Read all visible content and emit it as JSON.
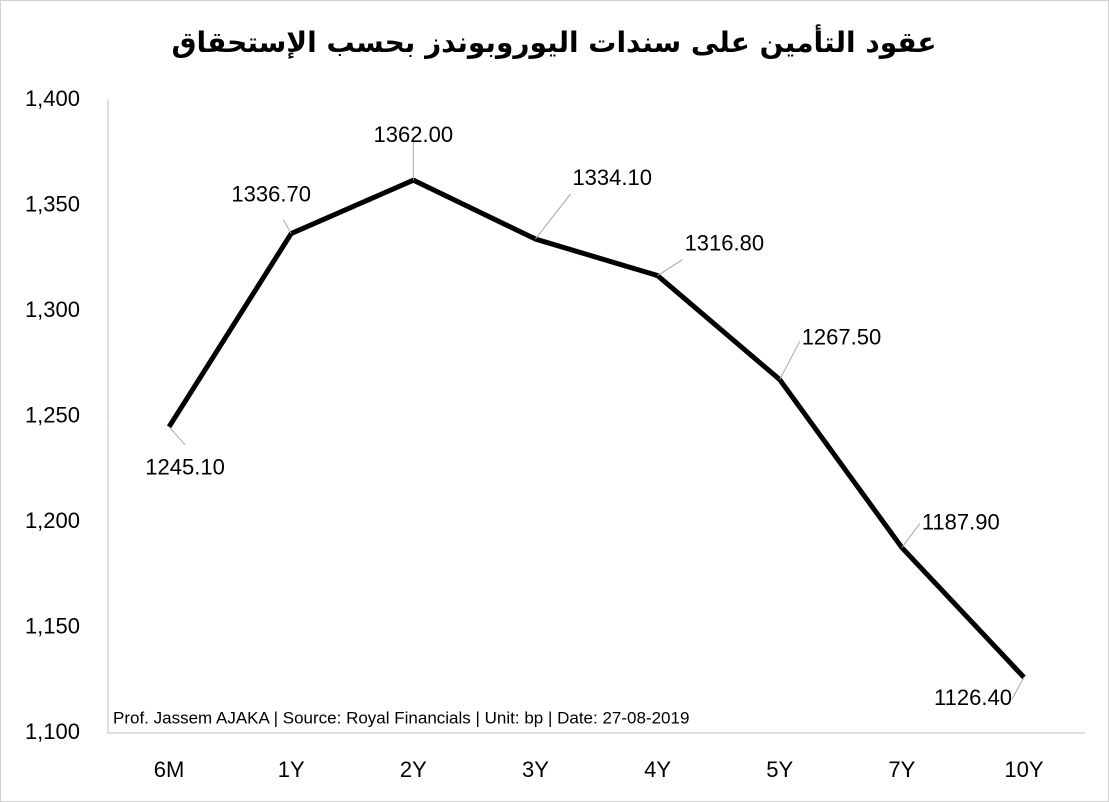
{
  "chart_data": {
    "type": "line",
    "title": "عقود التأمين على سندات اليوروبوندز بحسب الإستحقاق",
    "annotation": "Prof. Jassem AJAKA | Source: Royal Financials | Unit: bp | Date: 27-08-2019",
    "categories": [
      "6M",
      "1Y",
      "2Y",
      "3Y",
      "4Y",
      "5Y",
      "7Y",
      "10Y"
    ],
    "values": [
      1245.1,
      1336.7,
      1362,
      1334.1,
      1316.8,
      1267.5,
      1187.9,
      1126.4
    ],
    "value_labels": [
      "1245.10",
      "1336.70",
      "1362.00",
      "1334.10",
      "1316.80",
      "1267.50",
      "1187.90",
      "1126.40"
    ],
    "color": "#000000",
    "ylim": [
      1100,
      1400
    ],
    "yticks": [
      {
        "value": 1100,
        "label": "1,100"
      },
      {
        "value": 1150,
        "label": "1,150"
      },
      {
        "value": 1200,
        "label": "1,200"
      },
      {
        "value": 1250,
        "label": "1,250"
      },
      {
        "value": 1300,
        "label": "1,300"
      },
      {
        "value": 1350,
        "label": "1,350"
      },
      {
        "value": 1400,
        "label": "1,400"
      }
    ],
    "grid": false
  }
}
